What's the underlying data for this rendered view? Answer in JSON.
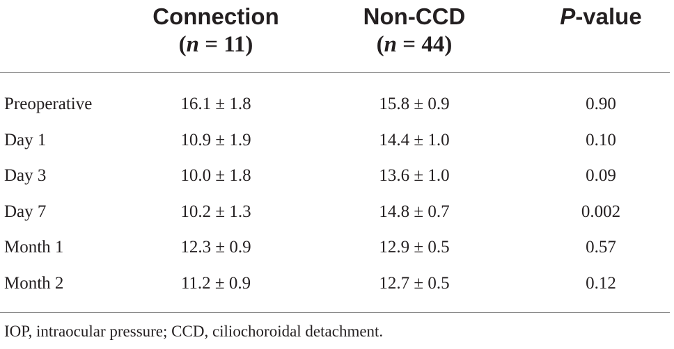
{
  "header": {
    "col1_title": "Connection",
    "col1_n_label": "n",
    "col1_n_value": " = 11",
    "col2_title": "Non-CCD",
    "col2_n_label": "n",
    "col2_n_value": " = 44",
    "col3_title_italic": "P",
    "col3_title_rest": "-value"
  },
  "rows": [
    {
      "label": "Preoperative",
      "connection": "16.1 ± 1.8",
      "non_ccd": "15.8 ± 0.9",
      "p_value": "0.90"
    },
    {
      "label": "Day 1",
      "connection": "10.9 ± 1.9",
      "non_ccd": "14.4 ± 1.0",
      "p_value": "0.10"
    },
    {
      "label": "Day 3",
      "connection": "10.0 ± 1.8",
      "non_ccd": "13.6 ± 1.0",
      "p_value": "0.09"
    },
    {
      "label": "Day 7",
      "connection": "10.2 ± 1.3",
      "non_ccd": "14.8 ± 0.7",
      "p_value": "0.002"
    },
    {
      "label": "Month 1",
      "connection": "12.3 ± 0.9",
      "non_ccd": "12.9 ± 0.5",
      "p_value": "0.57"
    },
    {
      "label": "Month 2",
      "connection": "11.2 ± 0.9",
      "non_ccd": "12.7 ± 0.5",
      "p_value": "0.12"
    }
  ],
  "footnote": "IOP, intraocular pressure; CCD, ciliochoroidal detachment."
}
